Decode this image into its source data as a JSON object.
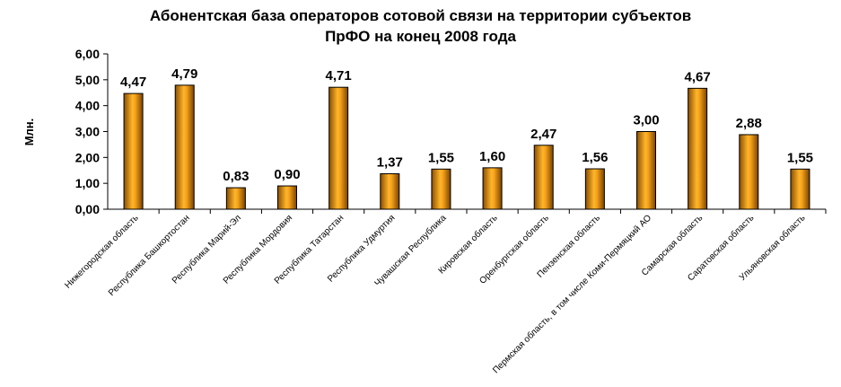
{
  "chart_data": {
    "type": "bar",
    "title_lines": [
      "Абонентская база операторов сотовой связи на территории субъектов",
      "ПрФО на конец 2008 года"
    ],
    "ylabel": "Млн.",
    "ylim": [
      0,
      6
    ],
    "yticks": [
      "0,00",
      "1,00",
      "2,00",
      "3,00",
      "4,00",
      "5,00",
      "6,00"
    ],
    "grid": false,
    "legend": "none",
    "bar_color": "#e8930f",
    "categories": [
      "Нижегородская область",
      "Республика Башкортостан",
      "Республика Марий-Эл",
      "Республика Мордовия",
      "Республика Татарстан",
      "Республика Удмуртия",
      "Чувашская Республика",
      "Кировская область",
      "Оренбургская область",
      "Пензенская область",
      "Пермская область, в том числе Коми-Пермяцкий АО",
      "Самарская область",
      "Саратовская область",
      "Ульяновская область"
    ],
    "values": [
      4.47,
      4.79,
      0.83,
      0.9,
      4.71,
      1.37,
      1.55,
      1.6,
      2.47,
      1.56,
      3.0,
      4.67,
      2.88,
      1.55
    ],
    "value_labels": [
      "4,47",
      "4,79",
      "0,83",
      "0,90",
      "4,71",
      "1,37",
      "1,55",
      "1,60",
      "2,47",
      "1,56",
      "3,00",
      "4,67",
      "2,88",
      "1,55"
    ]
  }
}
